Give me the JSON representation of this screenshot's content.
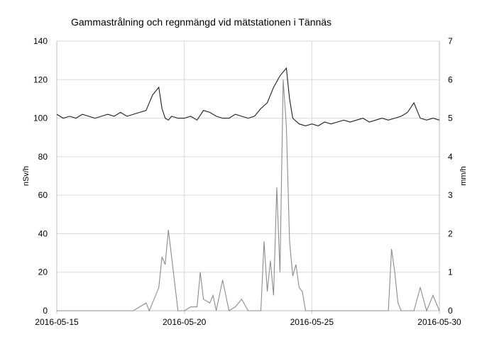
{
  "chart_data": {
    "type": "line",
    "title": "Gammastrålning och regnmängd  vid mätstationen i Tännäs",
    "xlabel": "",
    "ylabel_left": "nSv/h",
    "ylabel_right": "mm/h",
    "x_ticks": [
      "2016-05-15",
      "2016-05-20",
      "2016-05-25",
      "2016-05-30"
    ],
    "x_range": [
      "2016-05-15",
      "2016-05-30"
    ],
    "y_left": {
      "min": 0,
      "max": 140,
      "ticks": [
        0,
        20,
        40,
        60,
        80,
        100,
        120,
        140
      ]
    },
    "y_right": {
      "min": 0,
      "max": 7,
      "ticks": [
        0,
        1,
        2,
        3,
        4,
        5,
        6,
        7
      ]
    },
    "grid": true,
    "legend": "none",
    "series": [
      {
        "axis": "left",
        "color": "#1f1f1f",
        "x": [
          "2016-05-15",
          "2016-05-15T06",
          "2016-05-15T12",
          "2016-05-15T18",
          "2016-05-16",
          "2016-05-16T06",
          "2016-05-16T12",
          "2016-05-16T18",
          "2016-05-17",
          "2016-05-17T06",
          "2016-05-17T12",
          "2016-05-17T18",
          "2016-05-18",
          "2016-05-18T06",
          "2016-05-18T12",
          "2016-05-18T18",
          "2016-05-19",
          "2016-05-19T03",
          "2016-05-19T06",
          "2016-05-19T09",
          "2016-05-19T12",
          "2016-05-19T18",
          "2016-05-20",
          "2016-05-20T06",
          "2016-05-20T12",
          "2016-05-20T18",
          "2016-05-21",
          "2016-05-21T06",
          "2016-05-21T12",
          "2016-05-21T18",
          "2016-05-22",
          "2016-05-22T06",
          "2016-05-22T12",
          "2016-05-22T18",
          "2016-05-23",
          "2016-05-23T06",
          "2016-05-23T12",
          "2016-05-23T18",
          "2016-05-24",
          "2016-05-24T03",
          "2016-05-24T06",
          "2016-05-24T12",
          "2016-05-24T18",
          "2016-05-25",
          "2016-05-25T06",
          "2016-05-25T12",
          "2016-05-25T18",
          "2016-05-26",
          "2016-05-26T06",
          "2016-05-26T12",
          "2016-05-26T18",
          "2016-05-27",
          "2016-05-27T06",
          "2016-05-27T12",
          "2016-05-27T18",
          "2016-05-28",
          "2016-05-28T06",
          "2016-05-28T12",
          "2016-05-28T18",
          "2016-05-29",
          "2016-05-29T06",
          "2016-05-29T12",
          "2016-05-29T18",
          "2016-05-30"
        ],
        "values": [
          102,
          100,
          101,
          100,
          102,
          101,
          100,
          101,
          102,
          101,
          103,
          101,
          102,
          103,
          104,
          112,
          116,
          105,
          100,
          99,
          101,
          100,
          100,
          101,
          99,
          104,
          103,
          101,
          100,
          100,
          102,
          101,
          100,
          101,
          105,
          108,
          116,
          122,
          126,
          110,
          100,
          97,
          96,
          97,
          96,
          98,
          97,
          98,
          99,
          98,
          99,
          100,
          98,
          99,
          100,
          99,
          100,
          101,
          103,
          108,
          100,
          99,
          100,
          99
        ]
      },
      {
        "axis": "right",
        "color": "#8c8c8c",
        "x": [
          "2016-05-15",
          "2016-05-18",
          "2016-05-18T12",
          "2016-05-18T15",
          "2016-05-18T18",
          "2016-05-19",
          "2016-05-19T03",
          "2016-05-19T06",
          "2016-05-19T09",
          "2016-05-19T12",
          "2016-05-19T18",
          "2016-05-20",
          "2016-05-20T06",
          "2016-05-20T12",
          "2016-05-20T15",
          "2016-05-20T18",
          "2016-05-21",
          "2016-05-21T03",
          "2016-05-21T06",
          "2016-05-21T12",
          "2016-05-21T18",
          "2016-05-22",
          "2016-05-22T06",
          "2016-05-22T12",
          "2016-05-22T18",
          "2016-05-23",
          "2016-05-23T03",
          "2016-05-23T06",
          "2016-05-23T09",
          "2016-05-23T12",
          "2016-05-23T15",
          "2016-05-23T18",
          "2016-05-23T21",
          "2016-05-24",
          "2016-05-24T03",
          "2016-05-24T06",
          "2016-05-24T09",
          "2016-05-24T12",
          "2016-05-24T15",
          "2016-05-24T18",
          "2016-05-25",
          "2016-05-28",
          "2016-05-28T03",
          "2016-05-28T06",
          "2016-05-28T09",
          "2016-05-28T12",
          "2016-05-29",
          "2016-05-29T06",
          "2016-05-29T12",
          "2016-05-29T18",
          "2016-05-30"
        ],
        "values": [
          0,
          0,
          0.2,
          0,
          0.2,
          0.6,
          1.4,
          1.2,
          2.1,
          1.4,
          0,
          0,
          0.1,
          0.1,
          1.0,
          0.3,
          0.2,
          0.4,
          0,
          0.8,
          0,
          0.1,
          0.3,
          0,
          0,
          0,
          1.8,
          0.5,
          1.3,
          0.4,
          3.2,
          1.0,
          6.0,
          4.8,
          1.8,
          0.9,
          1.2,
          0.6,
          0.5,
          0,
          0,
          0,
          1.6,
          1.0,
          0.2,
          0,
          0,
          0.6,
          0,
          0.4,
          0
        ]
      }
    ]
  }
}
